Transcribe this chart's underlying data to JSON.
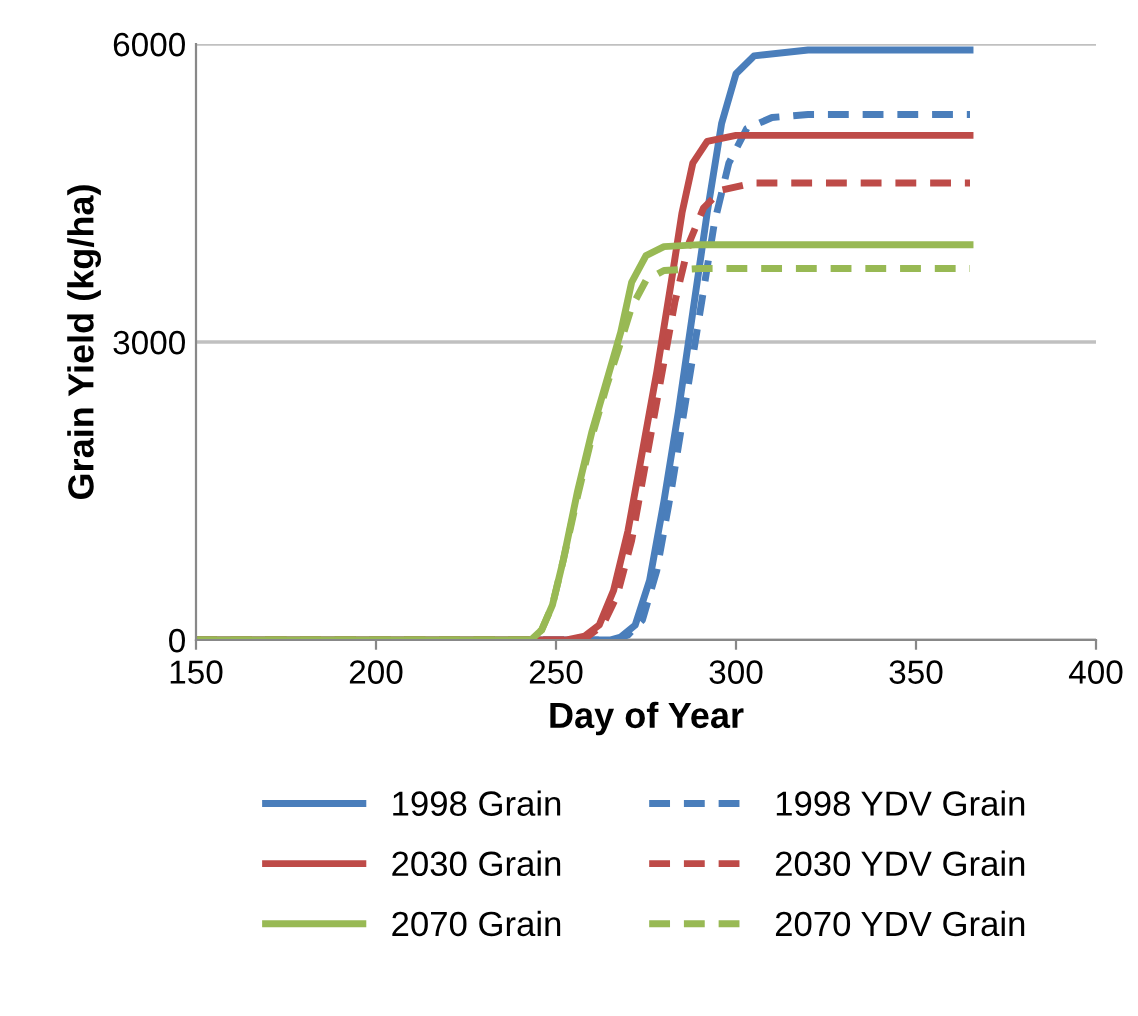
{
  "chart_data": {
    "type": "line",
    "xlabel": "Day of Year",
    "ylabel": "Grain Yield (kg/ha)",
    "xlim": [
      150,
      400
    ],
    "xticks": [
      150,
      200,
      250,
      300,
      350,
      400
    ],
    "ylim": [
      0,
      6000
    ],
    "yticks": [
      0,
      3000,
      6000
    ],
    "grid": "y",
    "legend": "bottom",
    "marker": "none",
    "series": [
      {
        "name": "1998 Grain",
        "color": "#4a7ebb",
        "line_style": "solid",
        "x": [
          150,
          265,
          268,
          272,
          276,
          280,
          284,
          288,
          292,
          296,
          300,
          305,
          320,
          365
        ],
        "values": [
          0,
          0,
          30,
          150,
          600,
          1400,
          2300,
          3300,
          4300,
          5200,
          5700,
          5880,
          5940,
          5940
        ]
      },
      {
        "name": "1998 YDV Grain",
        "color": "#4a7ebb",
        "line_style": "dashed",
        "x": [
          150,
          266,
          270,
          274,
          278,
          282,
          286,
          290,
          294,
          298,
          303,
          310,
          320,
          365
        ],
        "values": [
          0,
          0,
          50,
          200,
          700,
          1500,
          2400,
          3300,
          4200,
          4800,
          5150,
          5260,
          5290,
          5290
        ]
      },
      {
        "name": "2030 Grain",
        "color": "#be4b48",
        "line_style": "solid",
        "x": [
          150,
          253,
          258,
          262,
          266,
          270,
          274,
          278,
          282,
          285,
          288,
          292,
          300,
          365
        ],
        "values": [
          0,
          0,
          40,
          150,
          500,
          1100,
          1900,
          2700,
          3600,
          4300,
          4800,
          5020,
          5080,
          5080
        ]
      },
      {
        "name": "2030 YDV Grain",
        "color": "#be4b48",
        "line_style": "dashed",
        "x": [
          150,
          254,
          259,
          263,
          267,
          271,
          275,
          279,
          283,
          287,
          291,
          296,
          305,
          365
        ],
        "values": [
          0,
          0,
          40,
          150,
          450,
          1000,
          1800,
          2600,
          3400,
          4000,
          4350,
          4530,
          4600,
          4600
        ]
      },
      {
        "name": "2070 Grain",
        "color": "#98b954",
        "line_style": "solid",
        "x": [
          150,
          243,
          246,
          249,
          252,
          256,
          260,
          264,
          268,
          271,
          275,
          280,
          290,
          365
        ],
        "values": [
          0,
          0,
          100,
          350,
          800,
          1500,
          2100,
          2600,
          3100,
          3600,
          3870,
          3960,
          3980,
          3980
        ]
      },
      {
        "name": "2070 YDV Grain",
        "color": "#98b954",
        "line_style": "dashed",
        "x": [
          150,
          243,
          246,
          249,
          252,
          256,
          260,
          264,
          268,
          271,
          275,
          280,
          290,
          365
        ],
        "values": [
          0,
          0,
          100,
          350,
          800,
          1450,
          2050,
          2550,
          3000,
          3350,
          3620,
          3720,
          3740,
          3740
        ]
      }
    ]
  }
}
